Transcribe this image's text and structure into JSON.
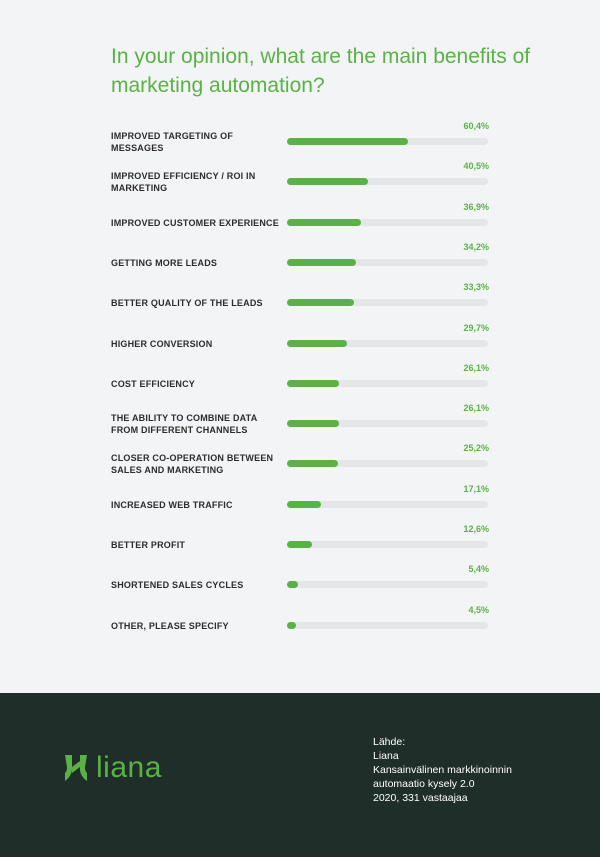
{
  "title": "In your opinion, what are the main benefits of marketing automation?",
  "colors": {
    "accent": "#5ab246",
    "track": "#e4e6e8",
    "footer": "#1f2e29"
  },
  "chart_data": {
    "type": "bar",
    "orientation": "horizontal",
    "title": "In your opinion, what are the main benefits of marketing automation?",
    "xlim": [
      0,
      100
    ],
    "grid": false,
    "categories": [
      "Improved targeting of messages",
      "Improved efficiency / ROI in marketing",
      "Improved customer experience",
      "Getting more leads",
      "Better quality of the leads",
      "Higher conversion",
      "Cost efficiency",
      "The ability to combine data from different channels",
      "Closer co-operation between sales and marketing",
      "Increased web traffic",
      "Better profit",
      "Shortened sales cycles",
      "Other, please specify"
    ],
    "values": [
      60.4,
      40.5,
      36.9,
      34.2,
      33.3,
      29.7,
      26.1,
      26.1,
      25.2,
      17.1,
      12.6,
      5.4,
      4.5
    ],
    "value_labels": [
      "60,4%",
      "40,5%",
      "36,9%",
      "34,2%",
      "33,3%",
      "29,7%",
      "26,1%",
      "26,1%",
      "25,2%",
      "17,1%",
      "12,6%",
      "5,4%",
      "4,5%"
    ]
  },
  "footer": {
    "logo_text": "liana",
    "logo_icon": "liana-logo-icon",
    "source_lines": [
      "Lähde:",
      "Liana",
      "Kansainvälinen markkinoinnin",
      "automaatio kysely 2.0",
      "2020, 331 vastaajaa"
    ]
  }
}
